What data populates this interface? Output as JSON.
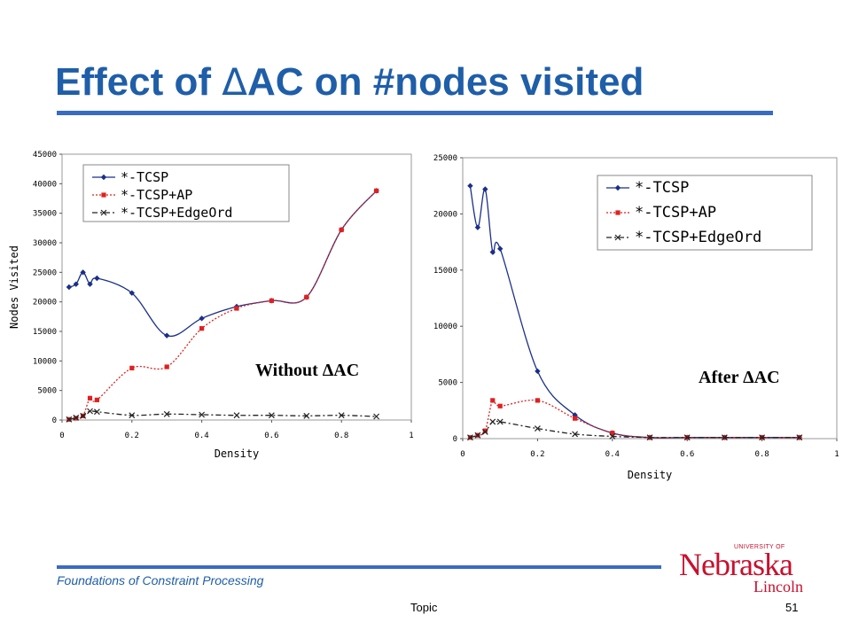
{
  "slide": {
    "title_prefix": "Effect of ",
    "title_delta": "Δ",
    "title_suffix": "AC on #nodes visited",
    "footer": "Foundations of Constraint Processing",
    "topic": "Topic",
    "page_number": "51",
    "accent_color": "#1f5ea8",
    "logo": {
      "university": "UNIVERSITY OF",
      "name": "Nebraska",
      "campus": "Lincoln",
      "color": "#c8102e"
    }
  },
  "chart_data": [
    {
      "type": "line",
      "annotation": "Without ΔAC",
      "xlabel": "Density",
      "ylabel": "Nodes Visited",
      "xlim": [
        0,
        1
      ],
      "ylim": [
        0,
        45000
      ],
      "xticks": [
        "0",
        "0.2",
        "0.4",
        "0.6",
        "0.8",
        "1"
      ],
      "yticks": [
        "0",
        "5000",
        "10000",
        "15000",
        "20000",
        "25000",
        "30000",
        "35000",
        "40000",
        "45000"
      ],
      "legend_position": "top-left",
      "series": [
        {
          "name": "*-TCSP",
          "color": "#1a2f8a",
          "style": "solid",
          "marker": "diamond",
          "x": [
            0.02,
            0.04,
            0.06,
            0.08,
            0.1,
            0.2,
            0.3,
            0.4,
            0.5,
            0.6,
            0.7,
            0.8,
            0.9
          ],
          "y": [
            22500,
            23000,
            25000,
            23000,
            24000,
            21500,
            14300,
            17200,
            19200,
            20200,
            20800,
            32200,
            38800
          ]
        },
        {
          "name": "*-TCSP+AP",
          "color": "#e02020",
          "style": "dotted",
          "marker": "square",
          "x": [
            0.02,
            0.04,
            0.06,
            0.08,
            0.1,
            0.2,
            0.3,
            0.4,
            0.5,
            0.6,
            0.7,
            0.8,
            0.9
          ],
          "y": [
            100,
            300,
            700,
            3700,
            3400,
            8800,
            9000,
            15500,
            18900,
            20200,
            20800,
            32200,
            38800
          ]
        },
        {
          "name": "*-TCSP+EdgeOrd",
          "color": "#222222",
          "style": "dashdot",
          "marker": "x",
          "x": [
            0.02,
            0.04,
            0.06,
            0.08,
            0.1,
            0.2,
            0.3,
            0.4,
            0.5,
            0.6,
            0.7,
            0.8,
            0.9
          ],
          "y": [
            100,
            400,
            700,
            1500,
            1400,
            800,
            1000,
            900,
            800,
            800,
            700,
            800,
            600
          ]
        }
      ]
    },
    {
      "type": "line",
      "annotation": "After ΔAC",
      "xlabel": "Density",
      "ylabel": "",
      "xlim": [
        0,
        1
      ],
      "ylim": [
        0,
        25000
      ],
      "xticks": [
        "0",
        "0.2",
        "0.4",
        "0.6",
        "0.8",
        "1"
      ],
      "yticks": [
        "0",
        "5000",
        "10000",
        "15000",
        "20000",
        "25000"
      ],
      "legend_position": "top-right",
      "series": [
        {
          "name": "*-TCSP",
          "color": "#1a2f8a",
          "style": "solid",
          "marker": "diamond",
          "x": [
            0.02,
            0.04,
            0.06,
            0.08,
            0.1,
            0.2,
            0.3,
            0.4,
            0.5,
            0.6,
            0.7,
            0.8,
            0.9
          ],
          "y": [
            22500,
            18800,
            22200,
            16600,
            16900,
            6000,
            2100,
            500,
            100,
            100,
            100,
            100,
            100
          ]
        },
        {
          "name": "*-TCSP+AP",
          "color": "#e02020",
          "style": "dotted",
          "marker": "square",
          "x": [
            0.02,
            0.04,
            0.06,
            0.08,
            0.1,
            0.2,
            0.3,
            0.4,
            0.5,
            0.6,
            0.7,
            0.8,
            0.9
          ],
          "y": [
            100,
            300,
            700,
            3400,
            2900,
            3400,
            1800,
            500,
            100,
            100,
            100,
            100,
            100
          ]
        },
        {
          "name": "*-TCSP+EdgeOrd",
          "color": "#222222",
          "style": "dashdot",
          "marker": "x",
          "x": [
            0.02,
            0.04,
            0.06,
            0.08,
            0.1,
            0.2,
            0.3,
            0.4,
            0.5,
            0.6,
            0.7,
            0.8,
            0.9
          ],
          "y": [
            100,
            300,
            600,
            1500,
            1500,
            900,
            400,
            200,
            100,
            100,
            100,
            100,
            100
          ]
        }
      ]
    }
  ]
}
